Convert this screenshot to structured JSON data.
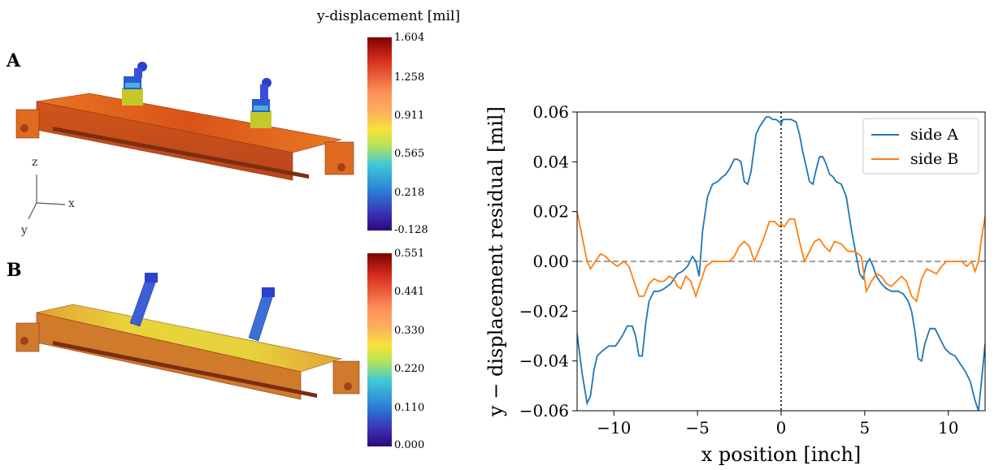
{
  "panels": {
    "a_label": "A",
    "b_label": "B",
    "colorbar_title": "y-displacement [mil]",
    "colorbar_a_ticks": [
      "1.604",
      "1.258",
      "0.911",
      "0.565",
      "0.218",
      "-0.128"
    ],
    "colorbar_b_ticks": [
      "0.551",
      "0.441",
      "0.330",
      "0.220",
      "0.110",
      "0.000"
    ],
    "axis_triad": {
      "z": "z",
      "x": "x",
      "y": "y"
    }
  },
  "colors": {
    "side_a": "#1f77b4",
    "side_b": "#ff7f0e",
    "zero_line": "#808080",
    "model_a_body": "#e0601a",
    "model_b_body": "#e2c23a",
    "model_b_ends": "#d7742c",
    "bolt_blue": "#2b3fd0"
  },
  "chart_data": {
    "type": "line",
    "xlabel": "x position [inch]",
    "ylabel": "y − displacement residual [mil]",
    "xlim": [
      -12.2,
      12.2
    ],
    "ylim": [
      -0.06,
      0.06
    ],
    "xticks": [
      -10,
      -5,
      0,
      5,
      10
    ],
    "xtick_labels": [
      "−10",
      "−5",
      "0",
      "5",
      "10"
    ],
    "yticks": [
      -0.06,
      -0.04,
      -0.02,
      0.0,
      0.02,
      0.04,
      0.06
    ],
    "ytick_labels": [
      "−0.06",
      "−0.04",
      "−0.02",
      "0.00",
      "0.02",
      "0.04",
      "0.06"
    ],
    "grid": false,
    "legend": "top-right",
    "reference_lines": [
      {
        "orientation": "horizontal",
        "value": 0.0,
        "style": "dashed"
      },
      {
        "orientation": "vertical",
        "value": 0.0,
        "style": "dotted"
      }
    ],
    "series": [
      {
        "name": "side A",
        "x": [
          -12.2,
          -11.9,
          -11.6,
          -11.4,
          -11.2,
          -11.0,
          -10.7,
          -10.3,
          -9.9,
          -9.5,
          -9.2,
          -8.9,
          -8.7,
          -8.5,
          -8.3,
          -8.1,
          -7.9,
          -7.6,
          -7.3,
          -7.0,
          -6.6,
          -6.2,
          -5.9,
          -5.6,
          -5.3,
          -5.1,
          -4.9,
          -4.7,
          -4.4,
          -4.1,
          -3.8,
          -3.5,
          -3.3,
          -3.1,
          -2.8,
          -2.6,
          -2.4,
          -2.2,
          -2.0,
          -1.8,
          -1.7,
          -1.5,
          -1.3,
          -1.1,
          -0.9,
          -0.7,
          -0.5,
          -0.3,
          -0.1,
          0.0,
          0.1,
          0.3,
          0.6,
          0.9,
          1.1,
          1.3,
          1.5,
          1.7,
          1.9,
          2.1,
          2.3,
          2.5,
          2.7,
          2.9,
          3.1,
          3.3,
          3.6,
          3.9,
          4.2,
          4.5,
          4.7,
          4.9,
          5.1,
          5.3,
          5.5,
          5.7,
          6.0,
          6.3,
          6.6,
          7.0,
          7.3,
          7.6,
          7.8,
          8.0,
          8.2,
          8.4,
          8.6,
          8.9,
          9.2,
          9.5,
          9.8,
          10.1,
          10.4,
          10.7,
          11.0,
          11.3,
          11.6,
          11.8,
          12.0,
          12.2
        ],
        "y": [
          -0.029,
          -0.045,
          -0.057,
          -0.054,
          -0.044,
          -0.038,
          -0.036,
          -0.034,
          -0.034,
          -0.03,
          -0.026,
          -0.026,
          -0.03,
          -0.038,
          -0.038,
          -0.025,
          -0.016,
          -0.012,
          -0.012,
          -0.011,
          -0.009,
          -0.005,
          -0.004,
          -0.002,
          0.002,
          0.0,
          -0.006,
          0.012,
          0.026,
          0.031,
          0.032,
          0.034,
          0.035,
          0.037,
          0.041,
          0.041,
          0.04,
          0.032,
          0.031,
          0.036,
          0.041,
          0.051,
          0.054,
          0.056,
          0.058,
          0.058,
          0.057,
          0.057,
          0.056,
          0.055,
          0.057,
          0.057,
          0.057,
          0.056,
          0.051,
          0.044,
          0.038,
          0.032,
          0.031,
          0.037,
          0.042,
          0.042,
          0.039,
          0.035,
          0.034,
          0.032,
          0.031,
          0.026,
          0.013,
          0.002,
          -0.005,
          -0.007,
          -0.001,
          0.001,
          -0.002,
          -0.006,
          -0.009,
          -0.011,
          -0.012,
          -0.012,
          -0.013,
          -0.016,
          -0.02,
          -0.028,
          -0.039,
          -0.04,
          -0.033,
          -0.027,
          -0.027,
          -0.031,
          -0.035,
          -0.037,
          -0.038,
          -0.041,
          -0.044,
          -0.048,
          -0.056,
          -0.06,
          -0.047,
          -0.033
        ]
      },
      {
        "name": "side B",
        "x": [
          -12.2,
          -11.9,
          -11.6,
          -11.4,
          -11.1,
          -10.8,
          -10.5,
          -10.2,
          -9.8,
          -9.4,
          -9.1,
          -8.8,
          -8.5,
          -8.2,
          -7.9,
          -7.6,
          -7.3,
          -7.0,
          -6.7,
          -6.4,
          -6.2,
          -6.0,
          -5.7,
          -5.4,
          -5.1,
          -4.8,
          -4.5,
          -4.1,
          -3.7,
          -3.4,
          -3.1,
          -2.8,
          -2.5,
          -2.2,
          -1.9,
          -1.6,
          -1.3,
          -1.0,
          -0.7,
          -0.4,
          -0.1,
          0.0,
          0.2,
          0.5,
          0.8,
          1.1,
          1.4,
          1.7,
          2.0,
          2.3,
          2.6,
          2.9,
          3.2,
          3.6,
          4.0,
          4.4,
          4.8,
          5.1,
          5.4,
          5.7,
          6.0,
          6.3,
          6.6,
          6.9,
          7.2,
          7.5,
          7.8,
          8.1,
          8.4,
          8.7,
          9.0,
          9.3,
          9.6,
          9.9,
          10.2,
          10.5,
          10.8,
          11.1,
          11.4,
          11.6,
          11.8,
          12.0,
          12.2
        ],
        "y": [
          0.02,
          0.01,
          0.0,
          -0.003,
          0.0,
          0.003,
          0.002,
          0.0,
          -0.002,
          0.0,
          -0.002,
          -0.008,
          -0.014,
          -0.014,
          -0.009,
          -0.007,
          -0.008,
          -0.008,
          -0.006,
          -0.007,
          -0.01,
          -0.011,
          -0.006,
          -0.008,
          -0.014,
          -0.008,
          -0.002,
          0.0,
          0.0,
          0.0,
          0.0,
          0.002,
          0.006,
          0.008,
          0.006,
          0.0,
          0.005,
          0.01,
          0.016,
          0.016,
          0.014,
          0.015,
          0.014,
          0.017,
          0.017,
          0.008,
          0.0,
          0.004,
          0.008,
          0.009,
          0.006,
          0.004,
          0.008,
          0.007,
          0.004,
          0.004,
          0.002,
          -0.012,
          -0.008,
          -0.005,
          -0.006,
          -0.009,
          -0.01,
          -0.008,
          -0.006,
          -0.008,
          -0.014,
          -0.016,
          -0.007,
          -0.003,
          -0.004,
          -0.005,
          -0.002,
          0.0,
          0.0,
          0.0,
          0.0,
          -0.002,
          0.0,
          -0.004,
          0.0,
          0.01,
          0.018
        ]
      }
    ]
  }
}
